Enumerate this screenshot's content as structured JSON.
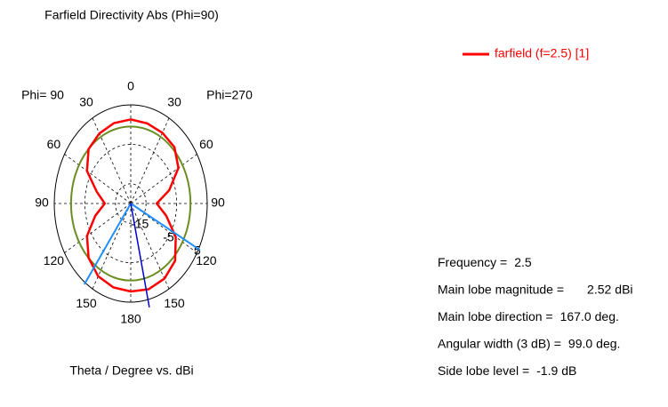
{
  "chart_data": {
    "type": "polar",
    "title": "Farfield Directivity Abs (Phi=90)",
    "xlabel": "Theta / Degree vs. dBi",
    "phi_left": "Phi= 90",
    "phi_right": "Phi=270",
    "angle_ticks_right": [
      0,
      30,
      60,
      90,
      120,
      150,
      180
    ],
    "angle_ticks_left": [
      30,
      60,
      90,
      120,
      150
    ],
    "rlim": [
      -20,
      5
    ],
    "rticks": [
      -15,
      -5,
      5
    ],
    "x": [
      0,
      15,
      30,
      45,
      60,
      75,
      90,
      105,
      120,
      135,
      150,
      165,
      180,
      195,
      210,
      225,
      240,
      255,
      270,
      285,
      300,
      315,
      330,
      345
    ],
    "series": [
      {
        "name": "farfield (f=2.5) [1]",
        "color": "#ff0000",
        "values": [
          1.3,
          1.0,
          0.7,
          0.2,
          -2,
          -7,
          -11.5,
          -8,
          -3,
          0.5,
          2.0,
          2.5,
          2.3,
          2.0,
          1.3,
          -0.5,
          -3.5,
          -8,
          -11.5,
          -8.5,
          -3.5,
          -0.5,
          0.5,
          1.1
        ]
      }
    ],
    "threshold": {
      "value": -0.48,
      "color": "#6b8e23"
    },
    "beam_color": "#1e90ff",
    "main_color": "#0000cd",
    "info": [
      {
        "label": "Frequency =",
        "value": 2.5
      },
      {
        "label": "Main lobe magnitude =",
        "value": 2.52,
        "unit": "dBi"
      },
      {
        "label": "Main lobe direction =",
        "value": 167,
        "value_label": "167.0",
        "unit": "deg."
      },
      {
        "label": "Angular width (3 dB) =",
        "value": 99,
        "value_label": "99.0",
        "unit": "deg."
      },
      {
        "label": "Side lobe level =",
        "value": -1.9,
        "unit": "dB"
      }
    ]
  }
}
